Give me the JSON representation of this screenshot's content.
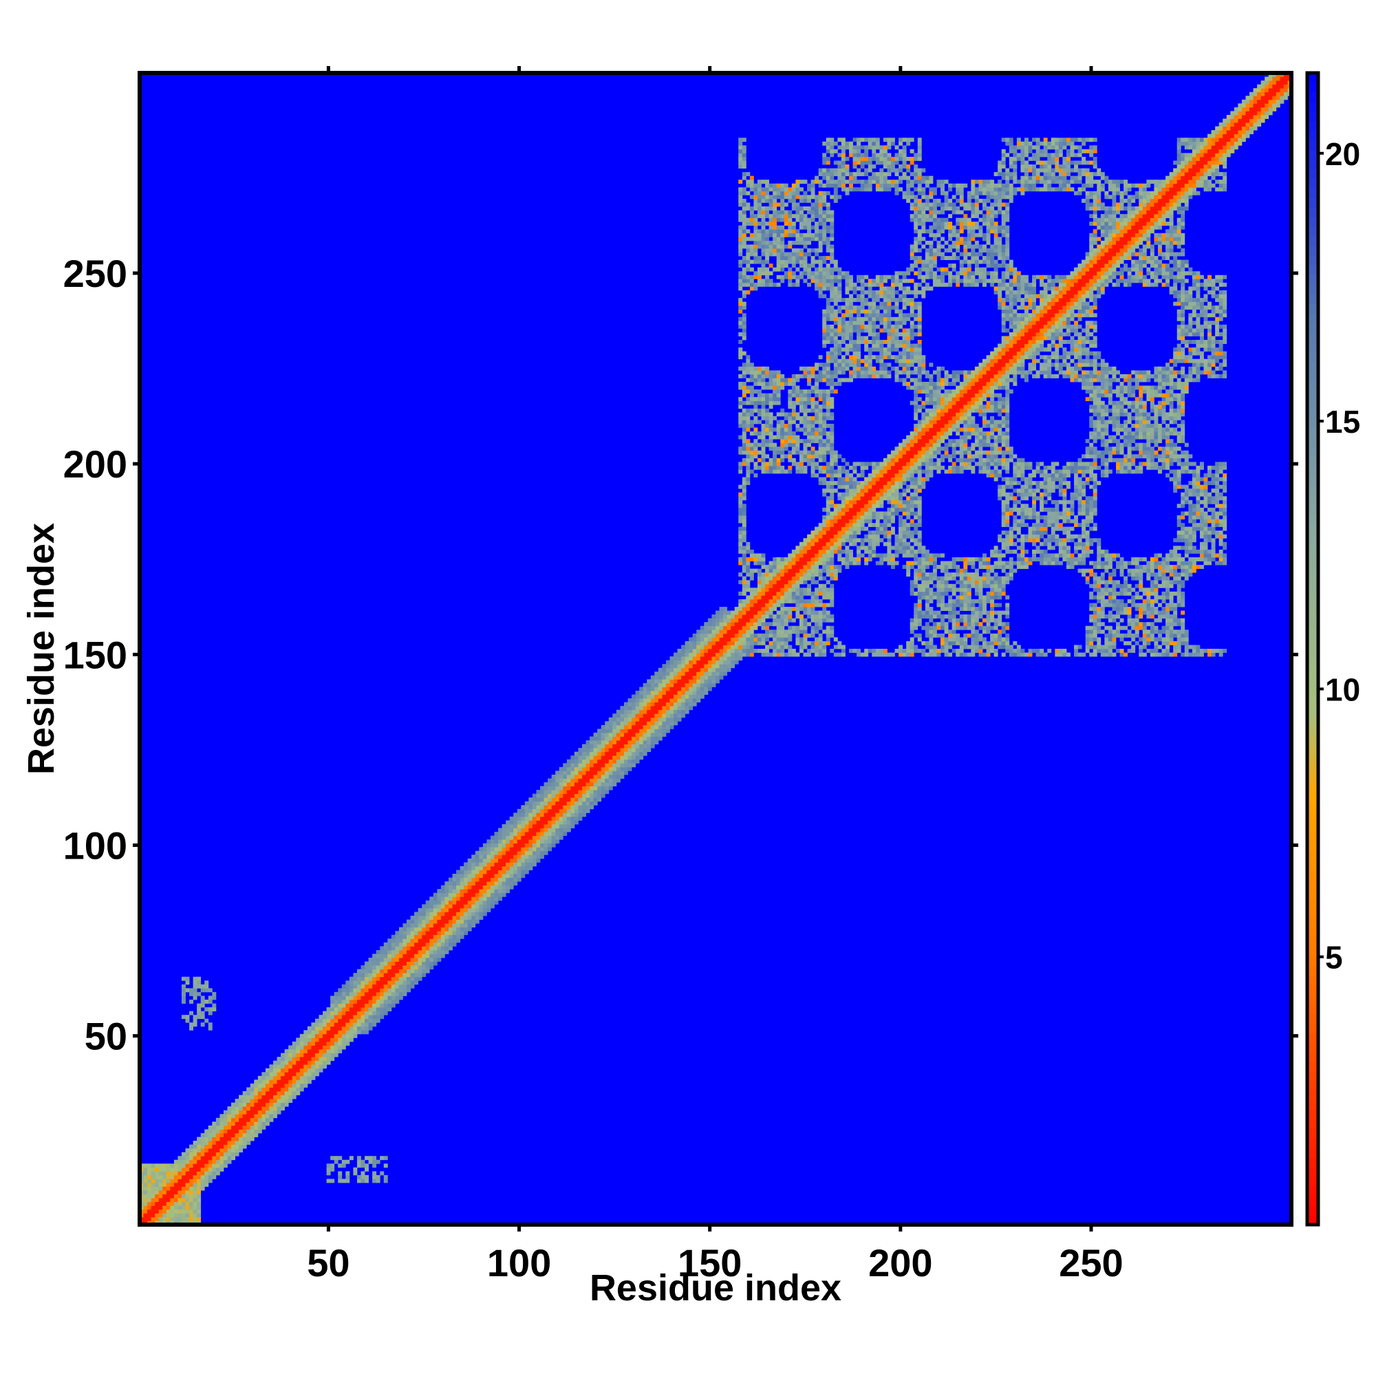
{
  "chart_data": {
    "type": "heatmap",
    "title": "",
    "xlabel": "Residue index",
    "ylabel": "Residue index",
    "xlim": [
      0.5,
      302.5
    ],
    "ylim": [
      0.5,
      302.5
    ],
    "x_ticks": [
      50,
      100,
      150,
      200,
      250
    ],
    "y_ticks": [
      50,
      100,
      150,
      200,
      250
    ],
    "colorbar": {
      "range": [
        0,
        21.5
      ],
      "ticks": [
        5,
        10,
        15,
        20
      ],
      "stops": [
        {
          "value": 0,
          "color": "#ff0000"
        },
        {
          "value": 5,
          "color": "#ff7a00"
        },
        {
          "value": 8,
          "color": "#ffa500"
        },
        {
          "value": 9.5,
          "color": "#a8c07c"
        },
        {
          "value": 13,
          "color": "#8aa8a0"
        },
        {
          "value": 17,
          "color": "#5678b0"
        },
        {
          "value": 21.5,
          "color": "#0000ff"
        }
      ]
    },
    "background_value": 21.5,
    "background_color": "#0000ff",
    "grid": false,
    "features": [
      {
        "kind": "diagonal",
        "from": 1,
        "to": 302
      },
      {
        "kind": "band",
        "from": 55,
        "to": 155,
        "halfwidth": 10
      },
      {
        "kind": "domain-block",
        "x": [
          160,
          285
        ],
        "y": [
          150,
          285
        ]
      }
    ]
  },
  "colors": {
    "close": "#ff0000",
    "near": "#ffa500",
    "medium": "#a8c07c",
    "far": "#0000ff"
  }
}
